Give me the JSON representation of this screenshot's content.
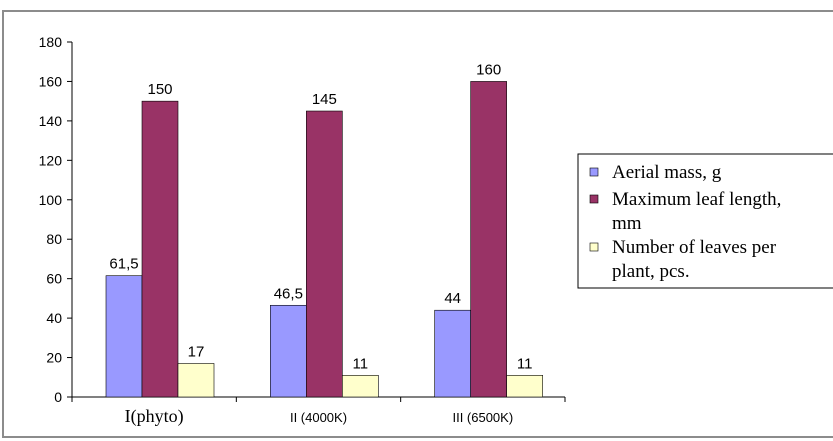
{
  "chart_data": {
    "type": "bar",
    "title": "",
    "xlabel": "",
    "ylabel": "",
    "ylim": [
      0,
      180
    ],
    "yticks": [
      0,
      20,
      40,
      60,
      80,
      100,
      120,
      140,
      160,
      180
    ],
    "categories": [
      "I(phyto)",
      "II (4000K)",
      "III (6500K)"
    ],
    "series": [
      {
        "name": "Aerial mass, g",
        "values": [
          61.5,
          46.5,
          44
        ],
        "labels": [
          "61,5",
          "46,5",
          "44"
        ],
        "color": "#9999ff"
      },
      {
        "name": "Maximum leaf length, mm",
        "values": [
          150,
          145,
          160
        ],
        "labels": [
          "150",
          "145",
          "160"
        ],
        "color": "#993366"
      },
      {
        "name": "Number of leaves per plant, pcs.",
        "values": [
          17,
          11,
          11
        ],
        "labels": [
          "17",
          "11",
          "11"
        ],
        "color": "#ffffcc"
      }
    ],
    "legend_position": "right",
    "grid": false
  },
  "legend": {
    "lines": [
      [
        "Aerial mass, g"
      ],
      [
        "Maximum leaf length,",
        "mm"
      ],
      [
        "Number of leaves per",
        "plant, pcs."
      ]
    ]
  }
}
